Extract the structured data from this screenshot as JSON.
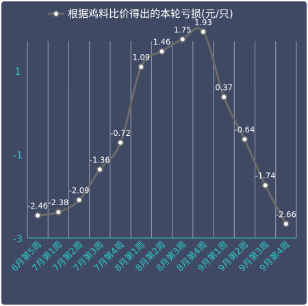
{
  "chart_data": {
    "type": "line",
    "title": "",
    "xlabel": "",
    "ylabel": "",
    "legend_position": "top-center",
    "grid": {
      "vertical": true,
      "horizontal": false
    },
    "smooth": true,
    "ylim": [
      -3,
      2
    ],
    "yticks": [
      "1",
      "-1",
      "-3"
    ],
    "ytick_values": [
      1,
      -1,
      -3
    ],
    "categories": [
      "6月第5周",
      "7月第1周",
      "7月第2周",
      "7月第3周",
      "7月第4周",
      "8月第1周",
      "8月第2周",
      "8月第3周",
      "8月第4周",
      "9月第1周",
      "9月第2周",
      "9月第3周",
      "9月第4周"
    ],
    "series": [
      {
        "name": "根据鸡料比价得出的本轮亏损(元/只)",
        "values": [
          -2.46,
          -2.38,
          -2.09,
          -1.36,
          -0.72,
          1.09,
          1.46,
          1.75,
          1.93,
          0.37,
          -0.64,
          -1.74,
          -2.66
        ],
        "labels": [
          "-2.46",
          "-2.38",
          "-2.09",
          "-1.36",
          "-0.72",
          "1.09",
          "1.46",
          "1.75",
          "1.93",
          "0.37",
          "-0.64",
          "-1.74",
          "-2.66"
        ],
        "color": "#6b6b6b",
        "marker_fill": "#ffffff"
      }
    ],
    "colors": {
      "background": "#404964",
      "grid": "#a9adbb",
      "axis": "#2ec5c5",
      "tick_text": "#2ec5c5",
      "label_text": "#ffffff"
    }
  }
}
